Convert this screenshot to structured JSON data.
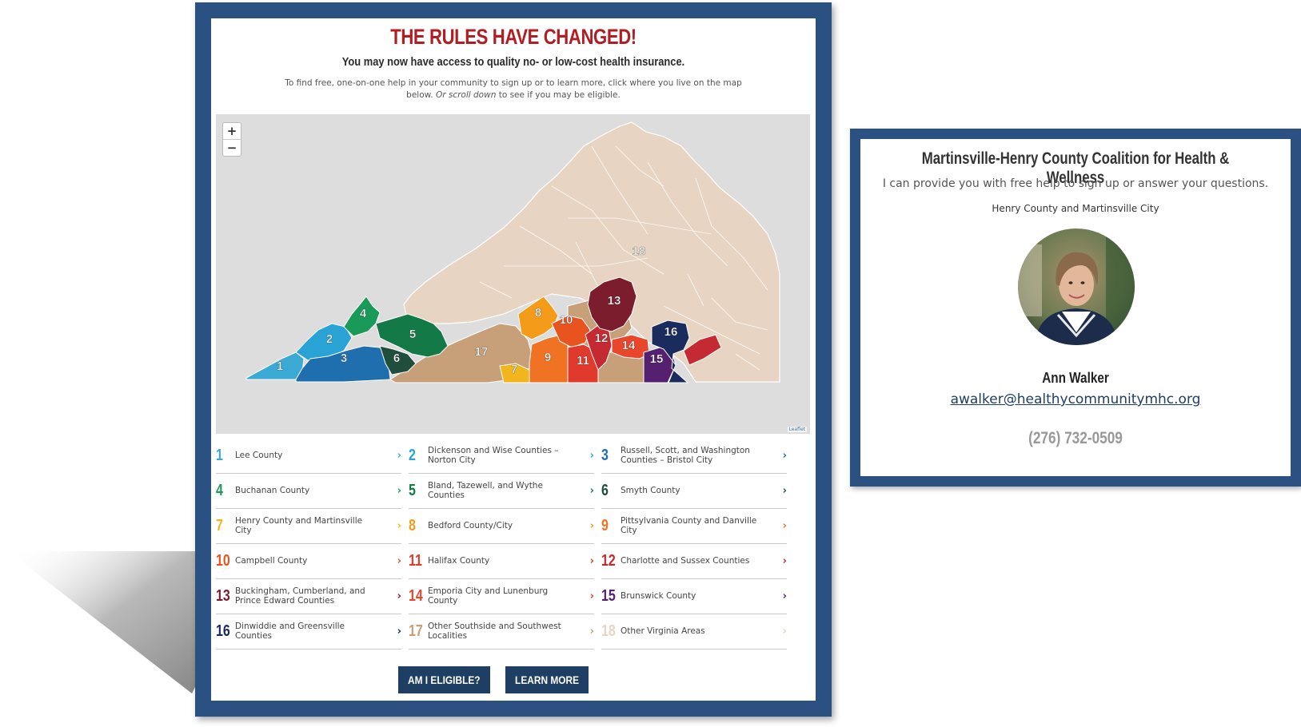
{
  "main": {
    "headline": "THE RULES HAVE CHANGED!",
    "subhead": "You may now have access to quality no- or low-cost health insurance.",
    "intro_part1": "To find free, one-on-one help in your community to sign up or to learn more, click where you live on the map below.",
    "intro_italic": "Or scroll down",
    "intro_part2": "to see if you may be eligible."
  },
  "map": {
    "zoom_in": "+",
    "zoom_out": "−",
    "attribution": "Leaflet",
    "region_labels": [
      "1",
      "2",
      "3",
      "4",
      "5",
      "6",
      "7",
      "8",
      "9",
      "10",
      "11",
      "12",
      "13",
      "14",
      "15",
      "16",
      "17",
      "18"
    ]
  },
  "regions": [
    {
      "number": "1",
      "label": "Lee County",
      "color": "#3aaad5"
    },
    {
      "number": "2",
      "label": "Dickenson and Wise Counties – Norton City",
      "color": "#29a3d6"
    },
    {
      "number": "3",
      "label": "Russell, Scott, and Washington Counties – Bristol City",
      "color": "#1f6fae"
    },
    {
      "number": "4",
      "label": "Buchanan County",
      "color": "#1a9a58"
    },
    {
      "number": "5",
      "label": "Bland, Tazewell, and Wythe Counties",
      "color": "#137a47"
    },
    {
      "number": "6",
      "label": "Smyth County",
      "color": "#1f4f3c"
    },
    {
      "number": "7",
      "label": "Henry County and Martinsville City",
      "color": "#f2b51c"
    },
    {
      "number": "8",
      "label": "Bedford County/City",
      "color": "#f49c1a"
    },
    {
      "number": "9",
      "label": "Pittsylvania County and Danville City",
      "color": "#ef7322"
    },
    {
      "number": "10",
      "label": "Campbell County",
      "color": "#e9531f"
    },
    {
      "number": "11",
      "label": "Halifax County",
      "color": "#e03a2d"
    },
    {
      "number": "12",
      "label": "Charlotte and Sussex Counties",
      "color": "#c52a33"
    },
    {
      "number": "13",
      "label": "Buckingham, Cumberland, and Prince Edward Counties",
      "color": "#7c1d2e"
    },
    {
      "number": "14",
      "label": "Emporia City and Lunenburg County",
      "color": "#e9472c"
    },
    {
      "number": "15",
      "label": "Brunswick County",
      "color": "#55206f"
    },
    {
      "number": "16",
      "label": "Dinwiddie and Greensville Counties",
      "color": "#1a2c5e"
    },
    {
      "number": "17",
      "label": "Other Southside and Southwest Localities",
      "color": "#c7a07a"
    },
    {
      "number": "18",
      "label": "Other Virginia Areas",
      "color": "#e7d4c2"
    }
  ],
  "buttons": {
    "eligible": "AM I ELIGIBLE?",
    "learn_more": "LEARN MORE"
  },
  "contact_card": {
    "org": "Martinsville-Henry County Coalition for Health & Wellness",
    "help_text": "I can provide you with free help to sign up or answer your questions.",
    "area": "Henry County and Martinsville City",
    "name": "Ann Walker",
    "email": "awalker@healthycommunitymhc.org",
    "phone": "(276) 732-0509"
  },
  "colors": {
    "frame_blue": "#2a5182",
    "button_navy": "#1e3e63",
    "headline_red": "#b01e23",
    "land_beige": "#e7d4c2",
    "map_bg": "#dddddd"
  }
}
